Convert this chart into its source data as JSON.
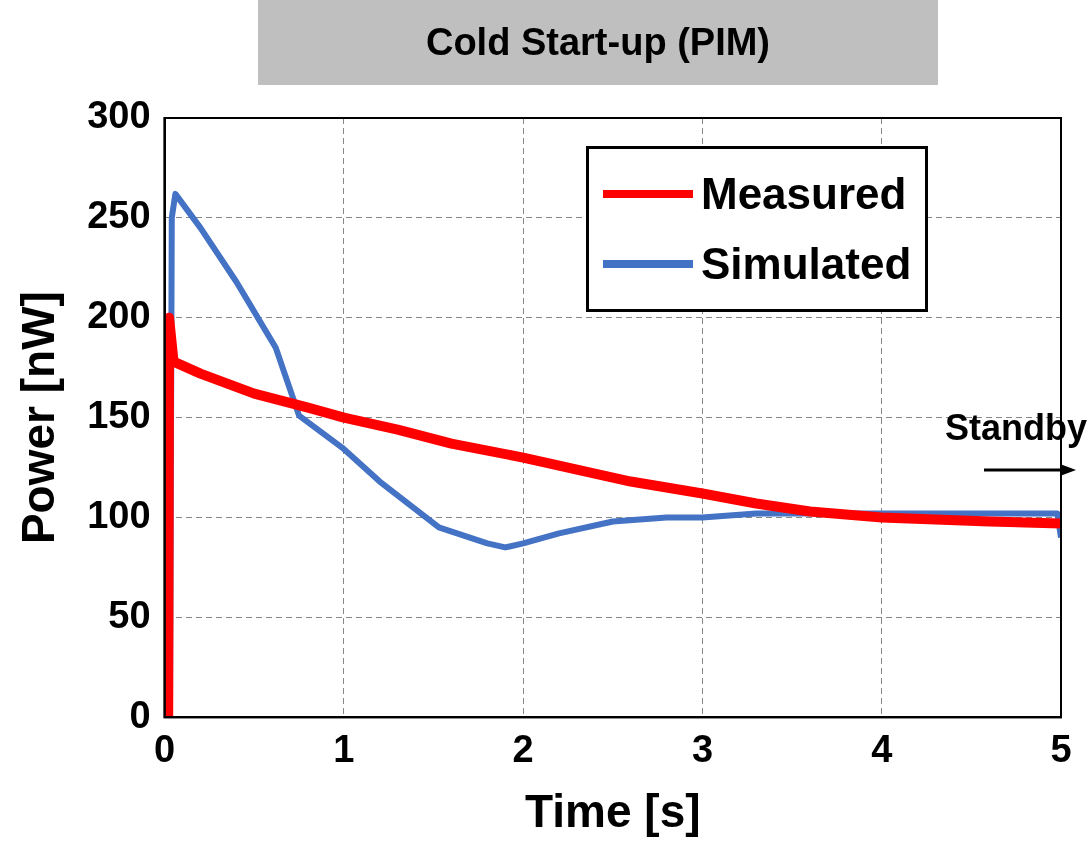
{
  "chart_data": {
    "type": "line",
    "title": "Cold Start-up (PIM)",
    "xlabel": "Time [s]",
    "ylabel": "Power [nW]",
    "xlim": [
      0,
      5
    ],
    "ylim": [
      0,
      300
    ],
    "xticks": [
      0,
      1,
      2,
      3,
      4,
      5
    ],
    "yticks": [
      0,
      50,
      100,
      150,
      200,
      250,
      300
    ],
    "grid": true,
    "legend": "top right",
    "series": [
      {
        "name": "Measured",
        "color": "#ff0000",
        "x": [
          0.02,
          0.025,
          0.05,
          0.2,
          0.5,
          0.8,
          1.0,
          1.3,
          1.6,
          2.0,
          2.3,
          2.6,
          3.0,
          3.3,
          3.6,
          4.0,
          4.3,
          4.6,
          5.0
        ],
        "values": [
          0,
          200,
          178,
          172,
          162,
          155,
          150,
          144,
          137,
          130,
          124,
          118,
          112,
          107,
          103,
          100,
          99,
          98,
          97
        ]
      },
      {
        "name": "Simulated",
        "color": "#4472c4",
        "x": [
          0.03,
          0.04,
          0.06,
          0.2,
          0.4,
          0.62,
          0.75,
          0.99,
          1.2,
          1.53,
          1.8,
          1.9,
          2.0,
          2.2,
          2.5,
          2.8,
          3.0,
          3.3,
          3.6,
          4.0,
          4.5,
          4.98,
          5.0
        ],
        "values": [
          0,
          250,
          262,
          245,
          218,
          185,
          151,
          135,
          118,
          95,
          87,
          85,
          87,
          92,
          98,
          100,
          100,
          102,
          102,
          102,
          102,
          102,
          90
        ]
      }
    ],
    "annotations": [
      "Standby"
    ]
  }
}
